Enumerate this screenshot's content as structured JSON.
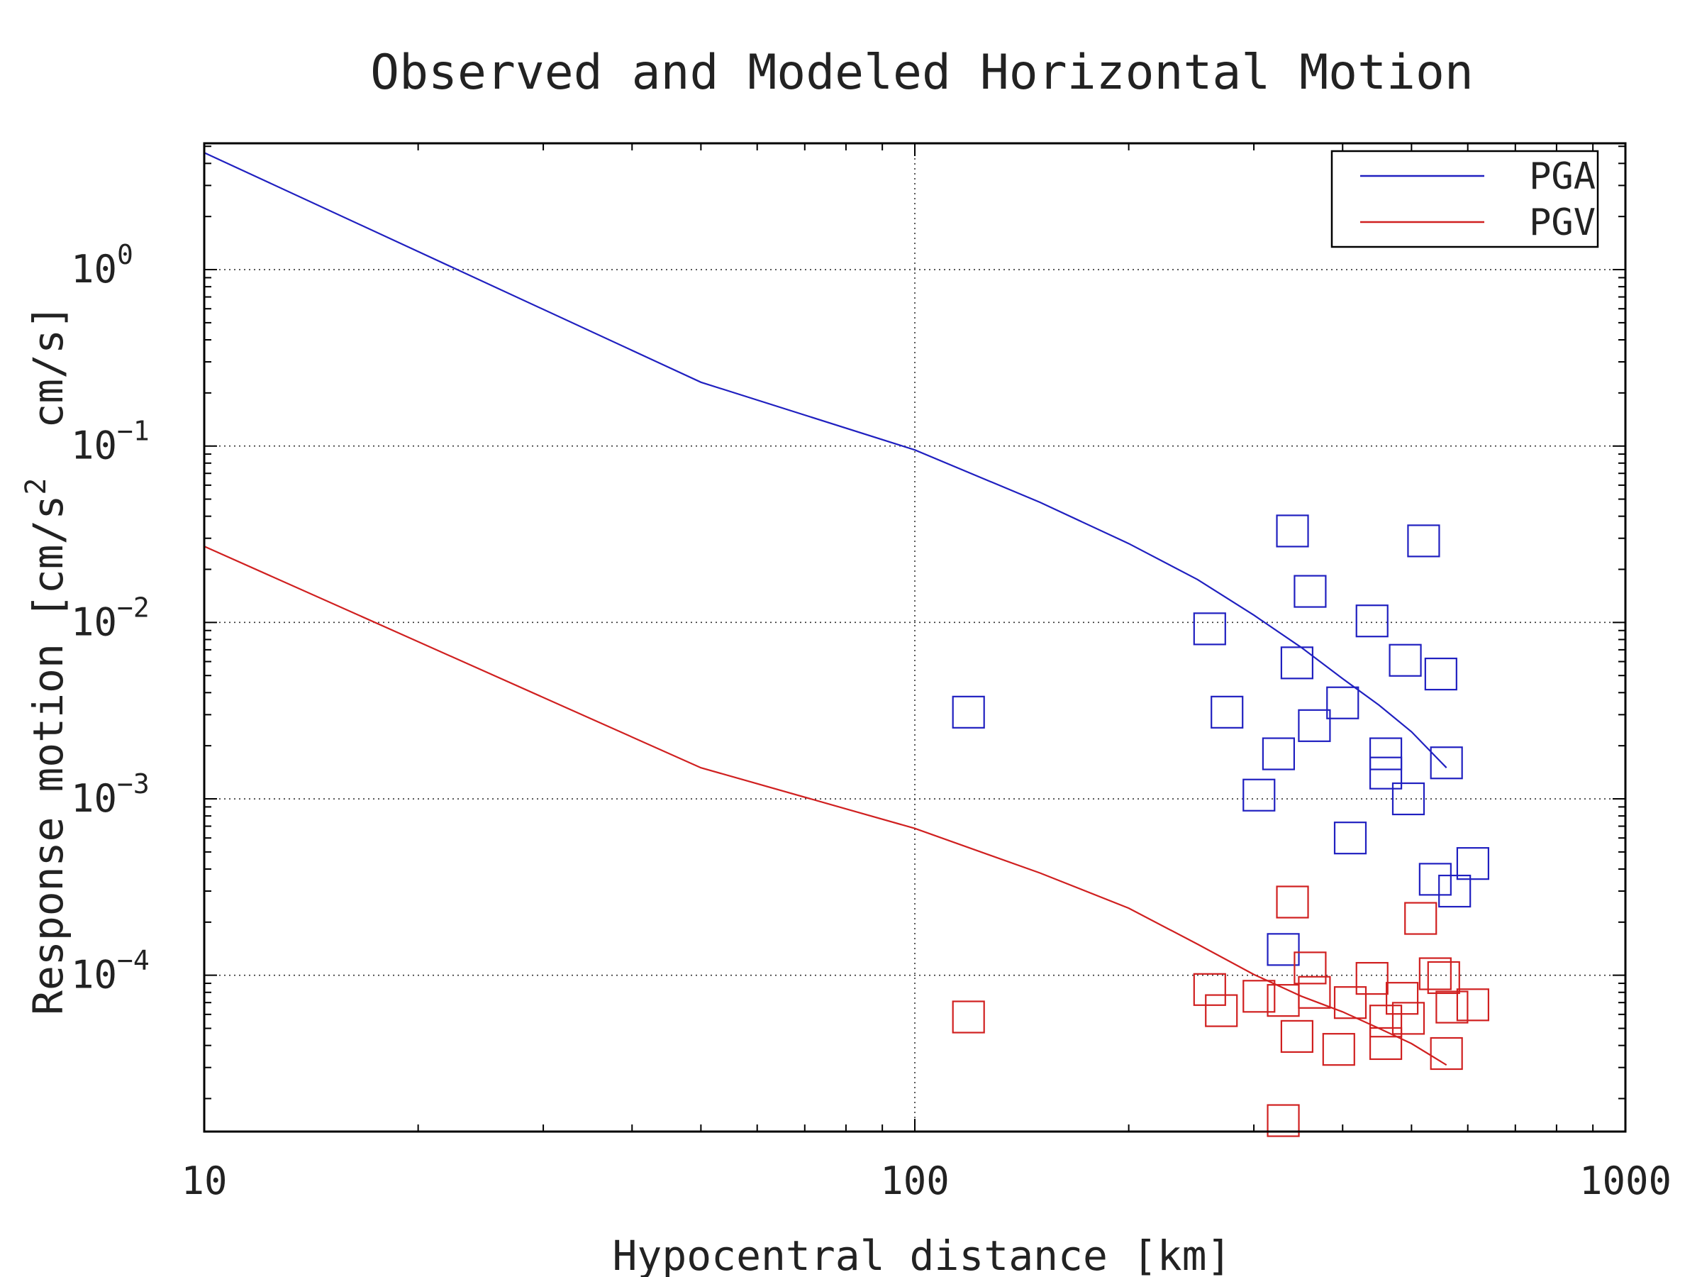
{
  "chart_data": {
    "type": "scatter",
    "title": "Observed and Modeled Horizontal Motion",
    "xlabel": "Hypocentral distance [km]",
    "ylabel_parts": [
      "Response motion [cm/s",
      "2",
      "  cm/s]"
    ],
    "x_scale": "log",
    "y_scale": "log",
    "xlim": [
      10,
      1000
    ],
    "ylim": [
      1.3e-05,
      5.2
    ],
    "x_ticks": [
      {
        "value": 10,
        "label": "10"
      },
      {
        "value": 100,
        "label": "100"
      },
      {
        "value": 1000,
        "label": "1000"
      }
    ],
    "y_ticks": [
      {
        "value": 0.0001,
        "base": "10",
        "exp": "−4"
      },
      {
        "value": 0.001,
        "base": "10",
        "exp": "−3"
      },
      {
        "value": 0.01,
        "base": "10",
        "exp": "−2"
      },
      {
        "value": 0.1,
        "base": "10",
        "exp": "−1"
      },
      {
        "value": 1,
        "base": "10",
        "exp": "0"
      }
    ],
    "grid": true,
    "legend_position": "top-right",
    "series": [
      {
        "name": "PGA",
        "color": "#2020c0",
        "line": [
          [
            10,
            4.6
          ],
          [
            50,
            0.23
          ],
          [
            100,
            0.095
          ],
          [
            150,
            0.048
          ],
          [
            200,
            0.028
          ],
          [
            250,
            0.0175
          ],
          [
            300,
            0.011
          ],
          [
            350,
            0.0072
          ],
          [
            400,
            0.0048
          ],
          [
            450,
            0.0034
          ],
          [
            500,
            0.0024
          ],
          [
            560,
            0.0015
          ]
        ],
        "points": [
          [
            119,
            0.0031
          ],
          [
            260,
            0.0092
          ],
          [
            275,
            0.0031
          ],
          [
            305,
            0.00105
          ],
          [
            325,
            0.0018
          ],
          [
            340,
            0.033
          ],
          [
            345,
            0.0059
          ],
          [
            360,
            0.015
          ],
          [
            365,
            0.0026
          ],
          [
            400,
            0.0035
          ],
          [
            410,
            0.0006
          ],
          [
            440,
            0.0102
          ],
          [
            460,
            0.0018
          ],
          [
            460,
            0.0014
          ],
          [
            490,
            0.0061
          ],
          [
            495,
            0.001
          ],
          [
            520,
            0.029
          ],
          [
            540,
            0.00035
          ],
          [
            550,
            0.0051
          ],
          [
            560,
            0.0016
          ],
          [
            575,
            0.0003
          ],
          [
            610,
            0.00043
          ],
          [
            330,
            0.00014
          ]
        ]
      },
      {
        "name": "PGV",
        "color": "#d02020",
        "line": [
          [
            10,
            0.027
          ],
          [
            50,
            0.0015
          ],
          [
            100,
            0.00068
          ],
          [
            150,
            0.00038
          ],
          [
            200,
            0.00024
          ],
          [
            250,
            0.00015
          ],
          [
            300,
            0.000101
          ],
          [
            350,
            7.6e-05
          ],
          [
            400,
            6.2e-05
          ],
          [
            450,
            5e-05
          ],
          [
            500,
            4.1e-05
          ],
          [
            560,
            3.1e-05
          ]
        ],
        "points": [
          [
            119,
            5.8e-05
          ],
          [
            260,
            8.3e-05
          ],
          [
            270,
            6.3e-05
          ],
          [
            305,
            7.6e-05
          ],
          [
            330,
            7.2e-05
          ],
          [
            330,
            1.5e-05
          ],
          [
            340,
            0.00026
          ],
          [
            345,
            4.5e-05
          ],
          [
            360,
            0.00011
          ],
          [
            365,
            8e-05
          ],
          [
            395,
            3.8e-05
          ],
          [
            410,
            7e-05
          ],
          [
            440,
            9.6e-05
          ],
          [
            460,
            5.5e-05
          ],
          [
            460,
            4.1e-05
          ],
          [
            485,
            7.4e-05
          ],
          [
            495,
            5.7e-05
          ],
          [
            515,
            0.00021
          ],
          [
            540,
            0.000102
          ],
          [
            555,
            9.7e-05
          ],
          [
            560,
            3.6e-05
          ],
          [
            570,
            6.6e-05
          ],
          [
            610,
            6.8e-05
          ]
        ]
      }
    ]
  }
}
